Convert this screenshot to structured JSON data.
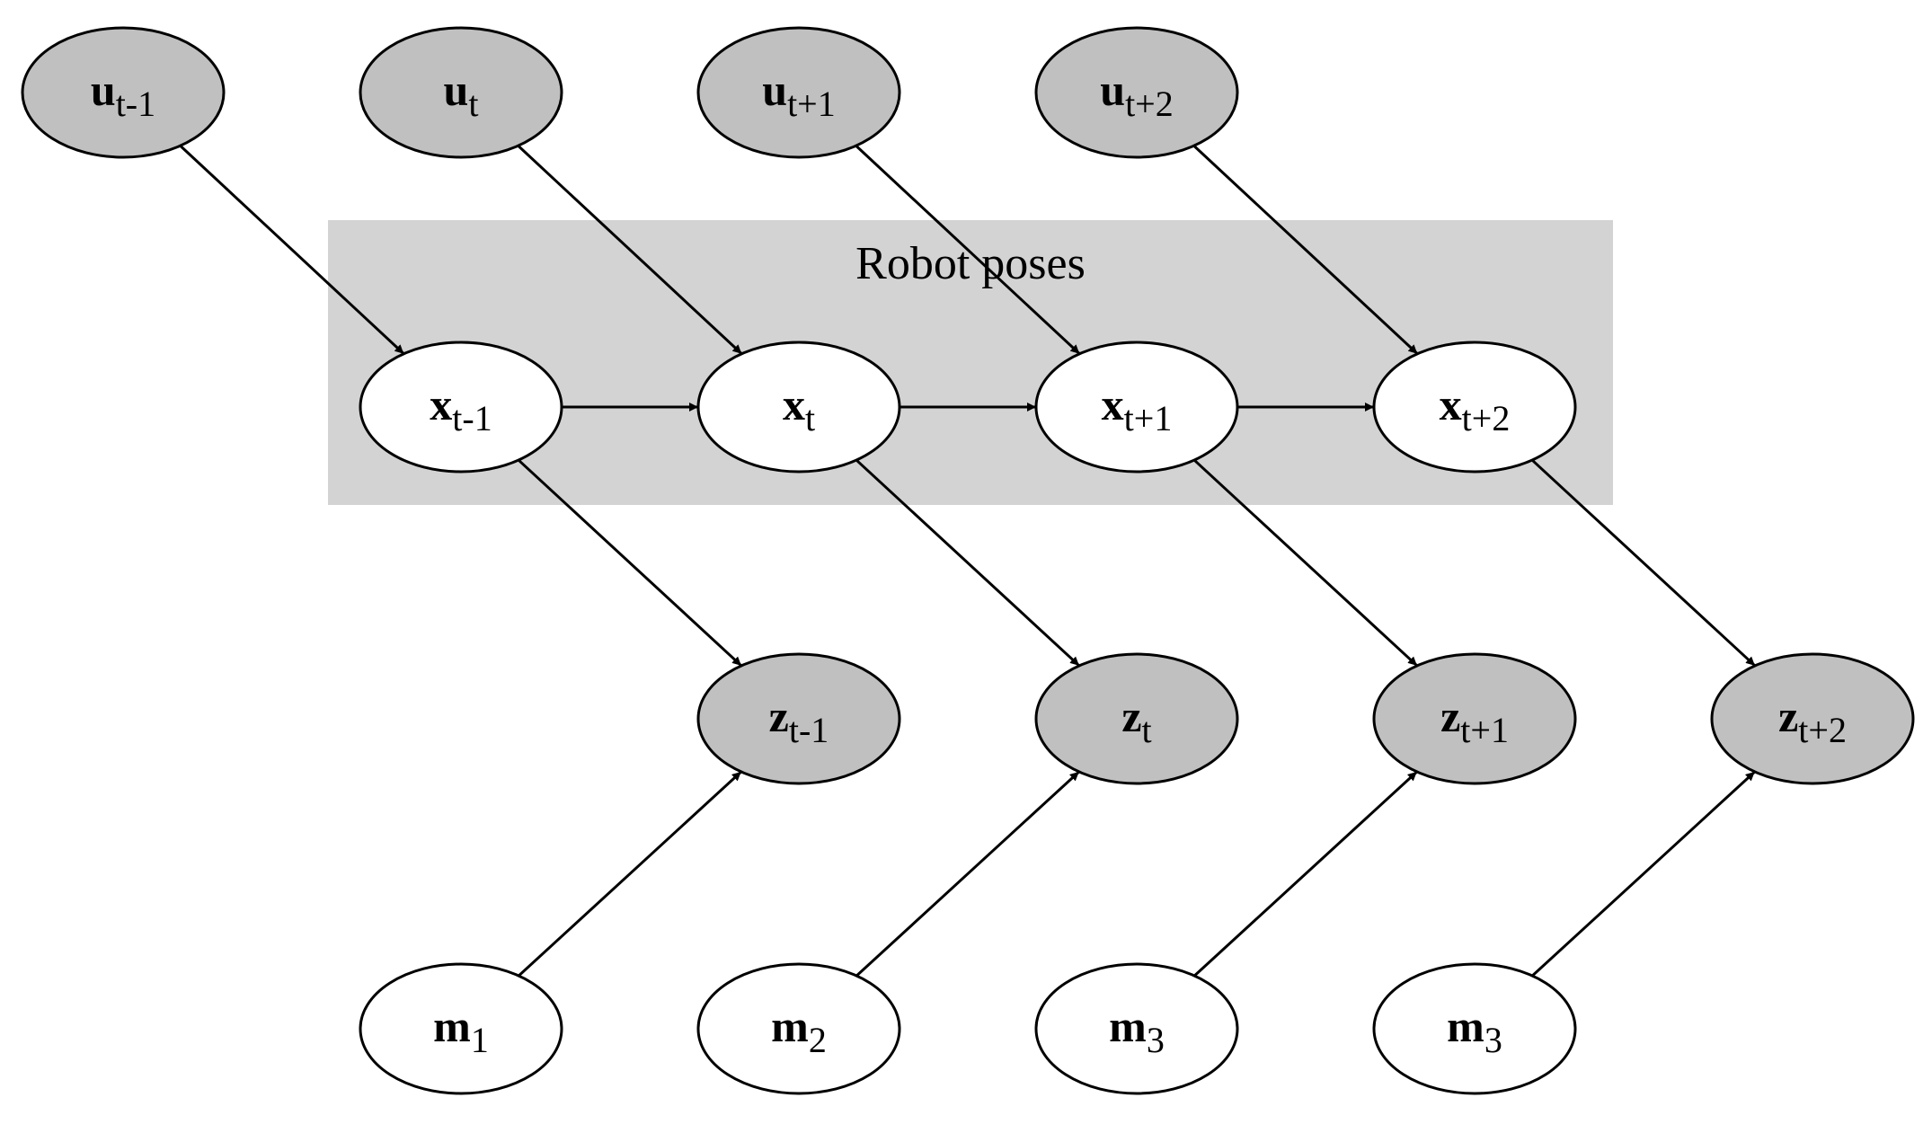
{
  "cluster": {
    "label": "Robot poses",
    "fill": "#d3d3d3"
  },
  "colors": {
    "observed_fill": "#c0c0c0",
    "latent_fill": "#ffffff",
    "stroke": "#000000"
  },
  "nodes": {
    "u_tm1": {
      "base": "u",
      "sub": "t-1",
      "observed": true
    },
    "u_t": {
      "base": "u",
      "sub": "t",
      "observed": true
    },
    "u_tp1": {
      "base": "u",
      "sub": "t+1",
      "observed": true
    },
    "u_tp2": {
      "base": "u",
      "sub": "t+2",
      "observed": true
    },
    "x_tm1": {
      "base": "x",
      "sub": "t-1",
      "observed": false
    },
    "x_t": {
      "base": "x",
      "sub": "t",
      "observed": false
    },
    "x_tp1": {
      "base": "x",
      "sub": "t+1",
      "observed": false
    },
    "x_tp2": {
      "base": "x",
      "sub": "t+2",
      "observed": false
    },
    "z_tm1": {
      "base": "z",
      "sub": "t-1",
      "observed": true
    },
    "z_t": {
      "base": "z",
      "sub": "t",
      "observed": true
    },
    "z_tp1": {
      "base": "z",
      "sub": "t+1",
      "observed": true
    },
    "z_tp2": {
      "base": "z",
      "sub": "t+2",
      "observed": true
    },
    "m_1": {
      "base": "m",
      "sub": "1",
      "observed": false
    },
    "m_2": {
      "base": "m",
      "sub": "2",
      "observed": false
    },
    "m_3a": {
      "base": "m",
      "sub": "3",
      "observed": false
    },
    "m_3b": {
      "base": "m",
      "sub": "3",
      "observed": false
    }
  },
  "edges": [
    [
      "u_tm1",
      "x_tm1"
    ],
    [
      "u_t",
      "x_t"
    ],
    [
      "u_tp1",
      "x_tp1"
    ],
    [
      "u_tp2",
      "x_tp2"
    ],
    [
      "x_tm1",
      "x_t"
    ],
    [
      "x_t",
      "x_tp1"
    ],
    [
      "x_tp1",
      "x_tp2"
    ],
    [
      "x_tm1",
      "z_tm1"
    ],
    [
      "x_t",
      "z_t"
    ],
    [
      "x_tp1",
      "z_tp1"
    ],
    [
      "x_tp2",
      "z_tp2"
    ],
    [
      "m_1",
      "z_tm1"
    ],
    [
      "m_2",
      "z_t"
    ],
    [
      "m_3a",
      "z_tp1"
    ],
    [
      "m_3b",
      "z_tp2"
    ]
  ]
}
